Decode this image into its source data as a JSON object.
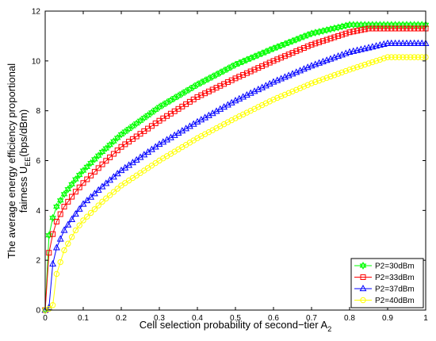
{
  "chart_data": {
    "type": "line",
    "xlabel_main": "Cell selection probability of second−tier A",
    "xlabel_sub": "2",
    "ylabel_line1": "The average energy efficiency proportional",
    "ylabel_line2_main": "fairness U",
    "ylabel_line2_sub": "EE",
    "ylabel_line2_end": "(bps/dBm)",
    "xlim": [
      0,
      1
    ],
    "ylim": [
      0,
      12
    ],
    "xticks": [
      0,
      0.1,
      0.2,
      0.3,
      0.4,
      0.5,
      0.6,
      0.7,
      0.8,
      0.9,
      1
    ],
    "xtick_labels": [
      "0",
      "0.1",
      "0.2",
      "0.3",
      "0.4",
      "0.5",
      "0.6",
      "0.7",
      "0.8",
      "0.9",
      "1"
    ],
    "yticks": [
      0,
      2,
      4,
      6,
      8,
      10,
      12
    ],
    "ytick_labels": [
      "0",
      "2",
      "4",
      "6",
      "8",
      "10",
      "12"
    ],
    "grid": false,
    "legend_position": "bottom-right",
    "series": [
      {
        "name": "P2=30dBm",
        "color": "#00ff00",
        "marker": "hexagram",
        "x": [
          0.0,
          0.01,
          0.02,
          0.03,
          0.05,
          0.08,
          0.1,
          0.15,
          0.2,
          0.3,
          0.4,
          0.5,
          0.6,
          0.7,
          0.8,
          0.9,
          1.0
        ],
        "y": [
          0.0,
          3.0,
          3.7,
          4.15,
          4.65,
          5.25,
          5.6,
          6.35,
          7.05,
          8.15,
          9.05,
          9.85,
          10.5,
          11.1,
          11.45,
          11.45,
          11.45
        ]
      },
      {
        "name": "P2=33dBm",
        "color": "#ff0000",
        "marker": "square",
        "x": [
          0.0,
          0.01,
          0.02,
          0.03,
          0.05,
          0.08,
          0.1,
          0.15,
          0.2,
          0.3,
          0.4,
          0.5,
          0.6,
          0.7,
          0.8,
          0.85,
          0.9,
          1.0
        ],
        "y": [
          0.0,
          2.3,
          3.05,
          3.55,
          4.15,
          4.75,
          5.1,
          5.85,
          6.55,
          7.6,
          8.55,
          9.3,
          10.0,
          10.65,
          11.15,
          11.3,
          11.3,
          11.3
        ]
      },
      {
        "name": "P2=37dBm",
        "color": "#0000ff",
        "marker": "triangle",
        "x": [
          0.0,
          0.01,
          0.02,
          0.03,
          0.05,
          0.08,
          0.1,
          0.15,
          0.2,
          0.3,
          0.4,
          0.5,
          0.6,
          0.7,
          0.8,
          0.9,
          0.92,
          1.0
        ],
        "y": [
          0.0,
          0.1,
          1.85,
          2.5,
          3.2,
          3.85,
          4.25,
          4.95,
          5.6,
          6.65,
          7.55,
          8.4,
          9.15,
          9.8,
          10.35,
          10.7,
          10.7,
          10.7
        ]
      },
      {
        "name": "P2=40dBm",
        "color": "#ffff00",
        "marker": "circle",
        "x": [
          0.0,
          0.01,
          0.02,
          0.03,
          0.05,
          0.08,
          0.1,
          0.15,
          0.2,
          0.3,
          0.4,
          0.5,
          0.6,
          0.7,
          0.8,
          0.9,
          0.92,
          1.0
        ],
        "y": [
          0.0,
          0.05,
          0.2,
          1.45,
          2.4,
          3.2,
          3.6,
          4.35,
          5.0,
          6.0,
          6.9,
          7.7,
          8.45,
          9.1,
          9.65,
          10.15,
          10.15,
          10.15
        ]
      }
    ]
  }
}
